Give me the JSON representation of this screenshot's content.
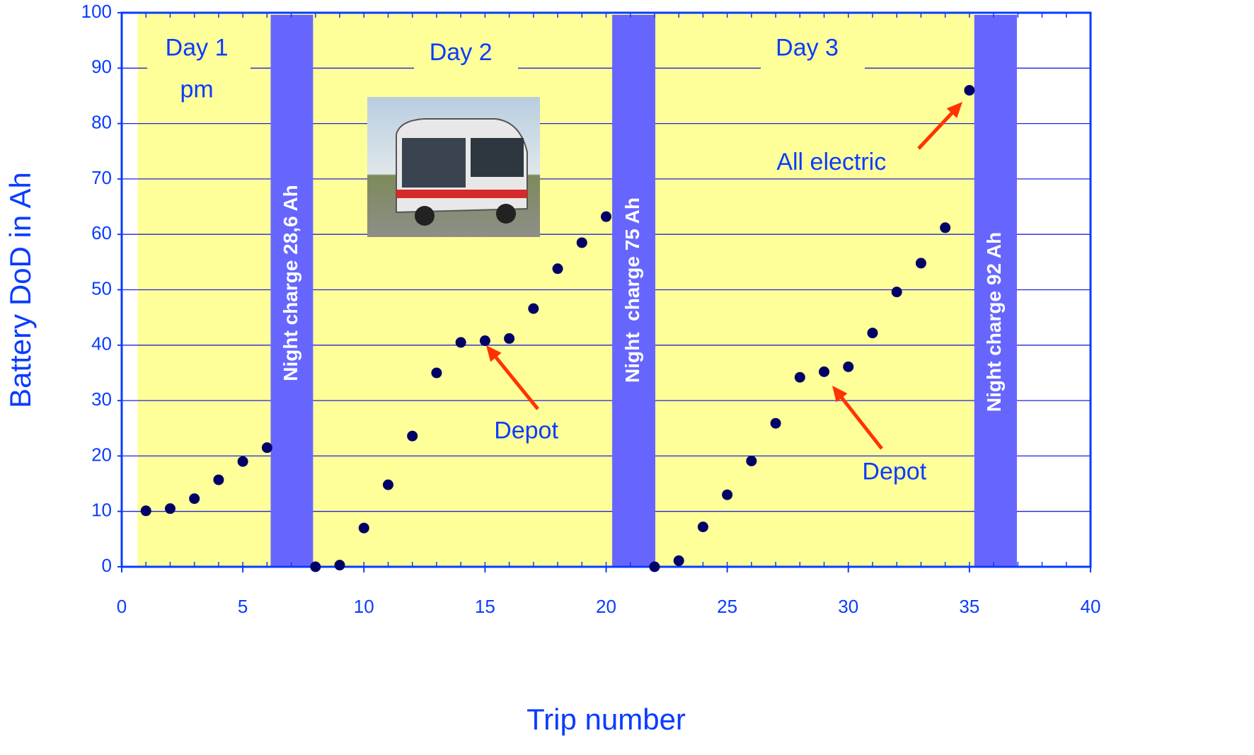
{
  "chart_data": {
    "type": "scatter",
    "x_label": "Trip number",
    "y_label": "Battery DoD in Ah",
    "x": [
      1,
      2,
      3,
      4,
      5,
      6,
      8,
      9,
      10,
      11,
      12,
      13,
      14,
      15,
      16,
      17,
      18,
      19,
      20,
      22,
      23,
      24,
      25,
      26,
      27,
      28,
      29,
      30,
      31,
      32,
      33,
      34,
      35
    ],
    "series": [
      {
        "color": "#000066",
        "values": [
          10.1,
          10.5,
          12.3,
          15.7,
          19.0,
          21.5,
          0,
          0.3,
          7.0,
          14.8,
          23.6,
          35.0,
          40.5,
          40.8,
          41.2,
          46.6,
          53.8,
          58.5,
          63.2,
          0,
          1.1,
          7.2,
          13.0,
          19.1,
          25.9,
          34.2,
          35.2,
          36.1,
          42.2,
          49.6,
          54.8,
          61.2,
          86.0
        ]
      }
    ],
    "xlim": [
      0,
      40
    ],
    "xticks": [
      0,
      5,
      10,
      15,
      20,
      25,
      30,
      35,
      40
    ],
    "ylim": [
      0,
      100
    ],
    "yticks": [
      0,
      10,
      20,
      30,
      40,
      50,
      60,
      70,
      80,
      90,
      100
    ],
    "grid": true,
    "shaded_regions": [
      {
        "x": [
          0.65,
          35.2
        ],
        "color": "#ffff99"
      }
    ],
    "night_bands": [
      {
        "x": [
          6.15,
          7.9
        ],
        "label": "Night charge 28,6 Ah",
        "color": "#6666ff"
      },
      {
        "x": [
          20.25,
          22.03
        ],
        "label": "Night  charge 75 Ah",
        "color": "#6666ff"
      },
      {
        "x": [
          35.2,
          36.96
        ],
        "label": "Night charge 92 Ah",
        "color": "#6666ff"
      }
    ],
    "annotations": [
      "Day 1",
      "pm",
      "Day 2",
      "Day 3",
      "Depot",
      "Depot",
      "All electric"
    ]
  }
}
